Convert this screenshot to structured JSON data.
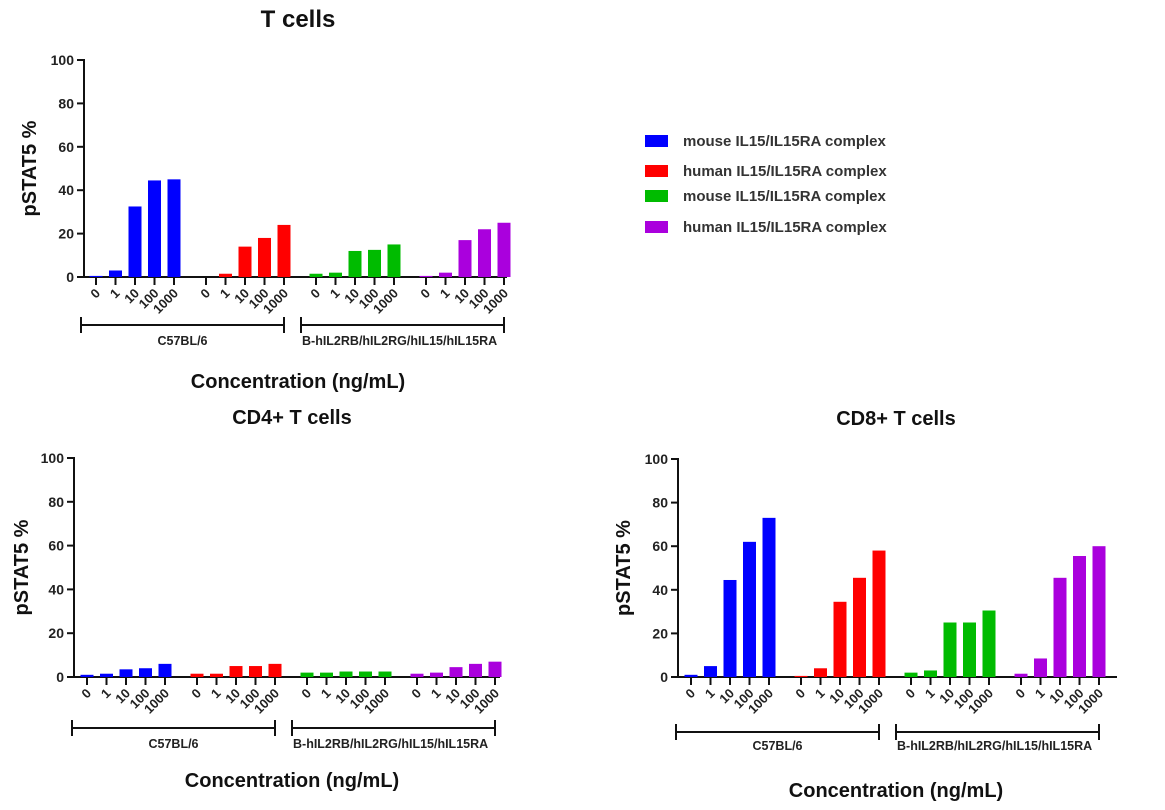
{
  "chart_data": [
    {
      "type": "bar",
      "id": "t-cells",
      "title": "T cells",
      "xlabel": "Concentration (ng/mL)",
      "ylabel": "pSTAT5 %",
      "ylim": [
        0,
        100
      ],
      "yticks": [
        0,
        20,
        40,
        60,
        80,
        100
      ],
      "grid": false,
      "categories": [
        "0",
        "1",
        "10",
        "100",
        "1000"
      ],
      "groups": [
        {
          "label": "C57BL/6",
          "series_indices": [
            0,
            1
          ]
        },
        {
          "label": "B-hIL2RB/hIL2RG/hIL15/hIL15RA",
          "series_indices": [
            2,
            3
          ]
        }
      ],
      "series": [
        {
          "name": "mouse IL15/IL15RA complex",
          "color": "#0000ff",
          "values": [
            0.5,
            3,
            32.5,
            44.5,
            45
          ]
        },
        {
          "name": "human IL15/IL15RA complex",
          "color": "#ff0000",
          "values": [
            0,
            1.5,
            14,
            18,
            24
          ]
        },
        {
          "name": "mouse IL15/IL15RA complex",
          "color": "#00bb00",
          "values": [
            1.5,
            2,
            12,
            12.5,
            15
          ]
        },
        {
          "name": "human IL15/IL15RA complex",
          "color": "#aa00dd",
          "values": [
            0.5,
            2,
            17,
            22,
            25
          ]
        }
      ]
    },
    {
      "type": "bar",
      "id": "cd4-t-cells",
      "title": "CD4+ T cells",
      "xlabel": "Concentration (ng/mL)",
      "ylabel": "pSTAT5 %",
      "ylim": [
        0,
        100
      ],
      "yticks": [
        0,
        20,
        40,
        60,
        80,
        100
      ],
      "grid": false,
      "categories": [
        "0",
        "1",
        "10",
        "100",
        "1000"
      ],
      "groups": [
        {
          "label": "C57BL/6",
          "series_indices": [
            0,
            1
          ]
        },
        {
          "label": "B-hIL2RB/hIL2RG/hIL15/hIL15RA",
          "series_indices": [
            2,
            3
          ]
        }
      ],
      "series": [
        {
          "name": "mouse IL15/IL15RA complex",
          "color": "#0000ff",
          "values": [
            1,
            1.5,
            3.5,
            4,
            6
          ]
        },
        {
          "name": "human IL15/IL15RA complex",
          "color": "#ff0000",
          "values": [
            1.5,
            1.5,
            5,
            5,
            6
          ]
        },
        {
          "name": "mouse IL15/IL15RA complex",
          "color": "#00bb00",
          "values": [
            2,
            2,
            2.5,
            2.5,
            2.5
          ]
        },
        {
          "name": "human IL15/IL15RA complex",
          "color": "#aa00dd",
          "values": [
            1.5,
            2,
            4.5,
            6,
            7
          ]
        }
      ]
    },
    {
      "type": "bar",
      "id": "cd8-t-cells",
      "title": "CD8+ T cells",
      "xlabel": "Concentration (ng/mL)",
      "ylabel": "pSTAT5 %",
      "ylim": [
        0,
        100
      ],
      "yticks": [
        0,
        20,
        40,
        60,
        80,
        100
      ],
      "grid": false,
      "categories": [
        "0",
        "1",
        "10",
        "100",
        "1000"
      ],
      "groups": [
        {
          "label": "C57BL/6",
          "series_indices": [
            0,
            1
          ]
        },
        {
          "label": "B-hIL2RB/hIL2RG/hIL15/hIL15RA",
          "series_indices": [
            2,
            3
          ]
        }
      ],
      "series": [
        {
          "name": "mouse IL15/IL15RA complex",
          "color": "#0000ff",
          "values": [
            1,
            5,
            44.5,
            62,
            73
          ]
        },
        {
          "name": "human IL15/IL15RA complex",
          "color": "#ff0000",
          "values": [
            0.5,
            4,
            34.5,
            45.5,
            58
          ]
        },
        {
          "name": "mouse IL15/IL15RA complex",
          "color": "#00bb00",
          "values": [
            2,
            3,
            25,
            25,
            30.5
          ]
        },
        {
          "name": "human IL15/IL15RA complex",
          "color": "#aa00dd",
          "values": [
            1.5,
            8.5,
            45.5,
            55.5,
            60
          ]
        }
      ]
    }
  ],
  "legend": {
    "placement": "right of T cells panel",
    "entries": [
      {
        "label": "mouse IL15/IL15RA complex",
        "color": "#0000ff"
      },
      {
        "label": "human IL15/IL15RA complex",
        "color": "#ff0000"
      },
      {
        "label": "mouse IL15/IL15RA complex",
        "color": "#00bb00"
      },
      {
        "label": "human IL15/IL15RA complex",
        "color": "#aa00dd"
      }
    ]
  }
}
